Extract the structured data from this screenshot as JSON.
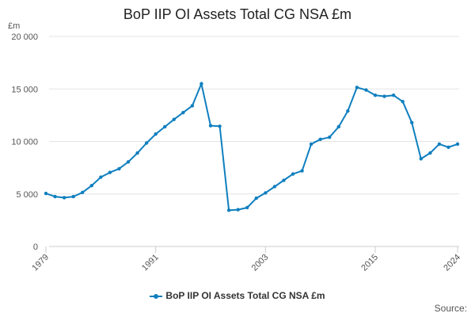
{
  "chart_data": {
    "type": "line",
    "title": "BoP IIP OI Assets Total CG NSA £m",
    "ylabel": "£m",
    "xlabel": "",
    "ylim": [
      0,
      20000
    ],
    "y_ticks": [
      "0",
      "5 000",
      "10 000",
      "15 000",
      "20 000"
    ],
    "x_tick_labels": [
      "1979",
      "1991",
      "2003",
      "2015",
      "2024"
    ],
    "grid": true,
    "legend_position": "bottom",
    "color": "#0f7fbf",
    "series": [
      {
        "name": "BoP IIP OI Assets Total CG NSA £m",
        "x": [
          1979,
          1980,
          1981,
          1982,
          1983,
          1984,
          1985,
          1986,
          1987,
          1988,
          1989,
          1990,
          1991,
          1992,
          1993,
          1994,
          1995,
          1996,
          1997,
          1998,
          1999,
          2000,
          2001,
          2002,
          2003,
          2004,
          2005,
          2006,
          2007,
          2008,
          2009,
          2010,
          2011,
          2012,
          2013,
          2014,
          2015,
          2016,
          2017,
          2018,
          2019,
          2020,
          2021,
          2022,
          2023,
          2024
        ],
        "values": [
          5050,
          4750,
          4650,
          4750,
          5150,
          5800,
          6600,
          7050,
          7400,
          8050,
          8900,
          9850,
          10700,
          11400,
          12100,
          12750,
          13400,
          15500,
          11500,
          11450,
          3450,
          3500,
          3700,
          4600,
          5100,
          5700,
          6300,
          6900,
          7200,
          9750,
          10200,
          10400,
          11400,
          12900,
          15150,
          14900,
          14400,
          14300,
          14400,
          13800,
          11800,
          8350,
          8900,
          9750,
          9450,
          9750
        ]
      }
    ]
  },
  "legend": {
    "label": "BoP IIP OI Assets Total CG NSA £m"
  },
  "footer": {
    "source_label": "Source:"
  }
}
